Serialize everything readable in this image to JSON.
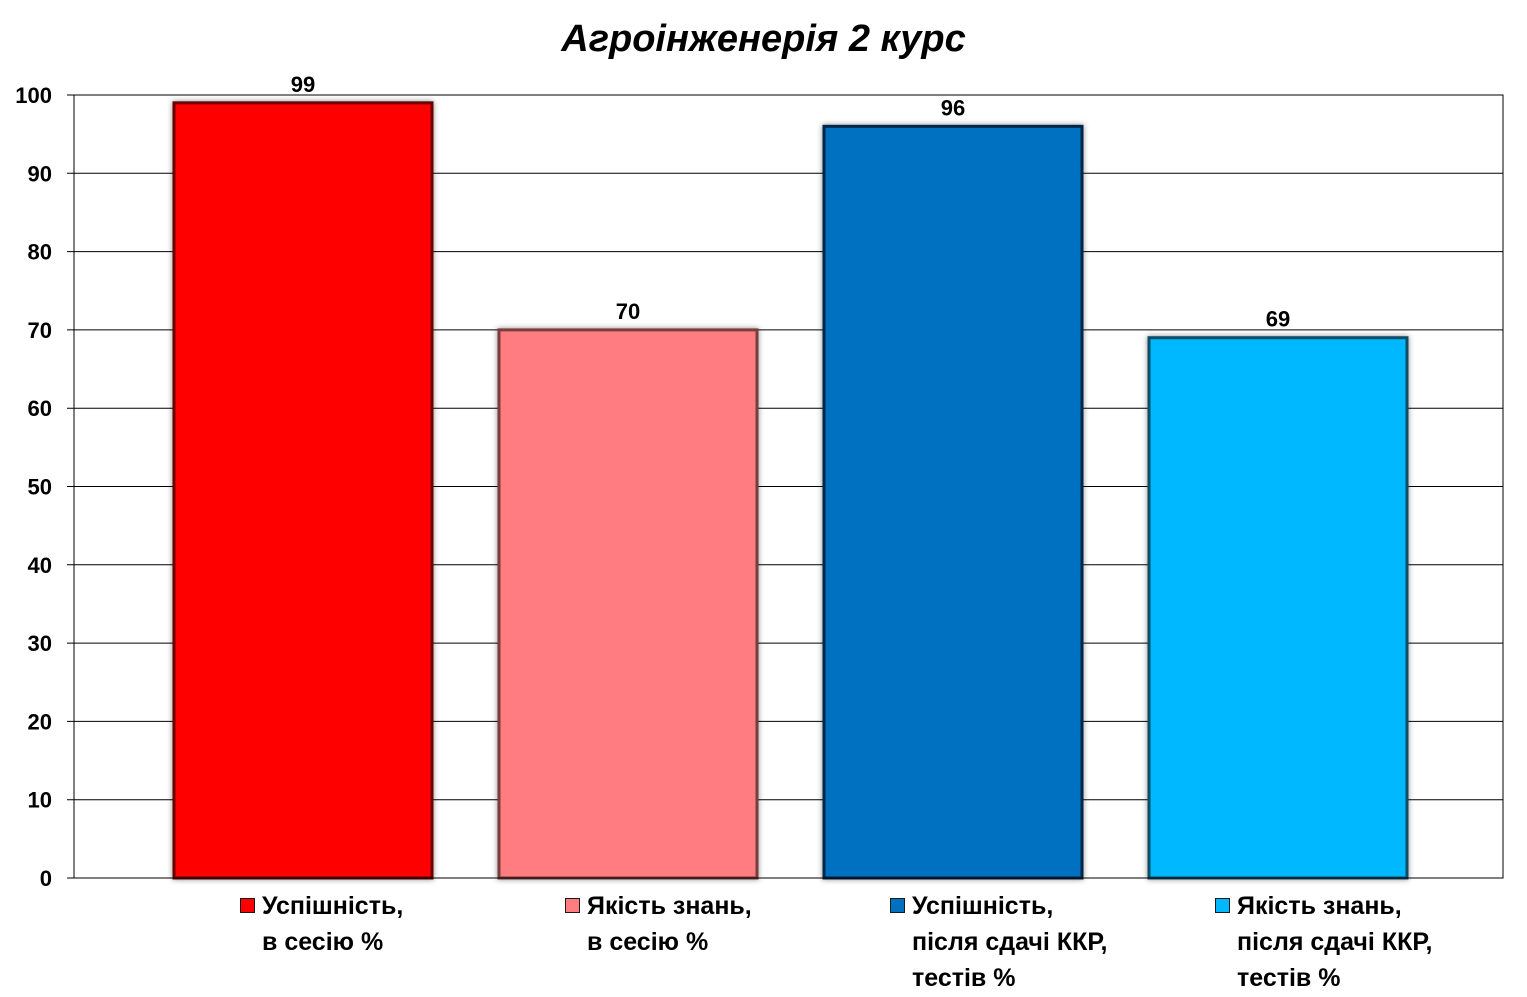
{
  "chart_data": {
    "type": "bar",
    "title": "Агроінженерія 2 курс",
    "ylim": [
      0,
      100
    ],
    "yticks": [
      "0",
      "10",
      "20",
      "30",
      "40",
      "50",
      "60",
      "70",
      "80",
      "90",
      "100"
    ],
    "grid": true,
    "legend_position": "bottom",
    "series": [
      {
        "name": "Успішність,\nв сесію %",
        "value": 99,
        "label": "99",
        "color": "#ff0000",
        "edge": "#6b0000"
      },
      {
        "name": "Якість знань,\nв сесію %",
        "value": 70,
        "label": "70",
        "color": "#ff7c80",
        "edge": "#7a3c3e"
      },
      {
        "name": "Успішність,\nпісля сдачі ККР,\nтестів %",
        "value": 96,
        "label": "96",
        "color": "#0070c0",
        "edge": "#00284a"
      },
      {
        "name": "Якість знань,\nпісля сдачі ККР,\nтестів %",
        "value": 69,
        "label": "69",
        "color": "#00b8ff",
        "edge": "#0b4e66"
      }
    ]
  }
}
